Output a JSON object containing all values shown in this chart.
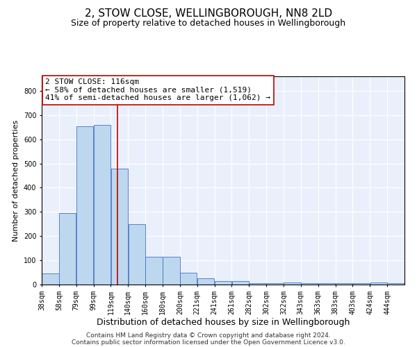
{
  "title_line1": "2, STOW CLOSE, WELLINGBOROUGH, NN8 2LD",
  "title_line2": "Size of property relative to detached houses in Wellingborough",
  "xlabel": "Distribution of detached houses by size in Wellingborough",
  "ylabel": "Number of detached properties",
  "footnote_line1": "Contains HM Land Registry data © Crown copyright and database right 2024.",
  "footnote_line2": "Contains public sector information licensed under the Open Government Licence v3.0.",
  "annotation_line1": "2 STOW CLOSE: 116sqm",
  "annotation_line2": "← 58% of detached houses are smaller (1,519)",
  "annotation_line3": "41% of semi-detached houses are larger (1,062) →",
  "bar_color": "#bdd7ee",
  "bar_edge_color": "#4472c4",
  "ref_line_color": "#c00000",
  "ref_line_x": 116,
  "categories": [
    "38sqm",
    "58sqm",
    "79sqm",
    "99sqm",
    "119sqm",
    "140sqm",
    "160sqm",
    "180sqm",
    "200sqm",
    "221sqm",
    "241sqm",
    "261sqm",
    "282sqm",
    "302sqm",
    "322sqm",
    "343sqm",
    "363sqm",
    "383sqm",
    "403sqm",
    "424sqm",
    "444sqm"
  ],
  "bin_edges": [
    28,
    48,
    68,
    88,
    108,
    128,
    148,
    168,
    188,
    208,
    228,
    248,
    268,
    288,
    308,
    328,
    348,
    368,
    388,
    408,
    428,
    448
  ],
  "bar_heights": [
    45,
    295,
    655,
    660,
    480,
    250,
    115,
    115,
    50,
    25,
    15,
    15,
    5,
    5,
    8,
    5,
    5,
    5,
    5,
    10,
    5
  ],
  "ylim": [
    0,
    860
  ],
  "yticks": [
    0,
    100,
    200,
    300,
    400,
    500,
    600,
    700,
    800
  ],
  "background_color": "#eaf0fb",
  "grid_color": "#ffffff",
  "title1_fontsize": 11,
  "title2_fontsize": 9,
  "annotation_fontsize": 8,
  "xlabel_fontsize": 9,
  "ylabel_fontsize": 8,
  "tick_fontsize": 7,
  "footnote_fontsize": 6.5
}
